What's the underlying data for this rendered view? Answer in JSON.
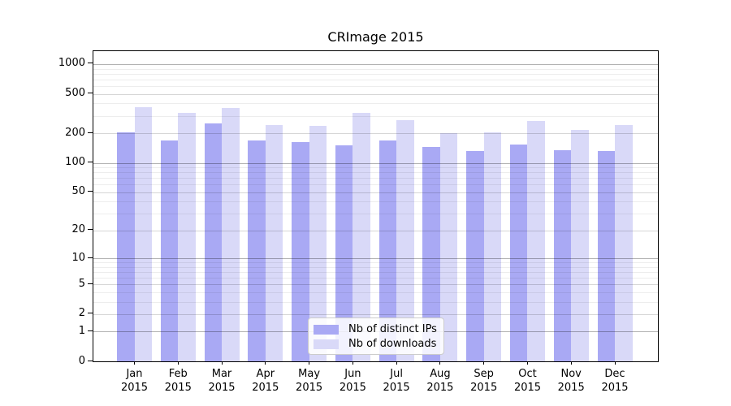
{
  "figure": {
    "title": "CRImage 2015",
    "background_color": "#ffffff",
    "axis_color": "#000000"
  },
  "chart_data": {
    "type": "bar",
    "title": "CRImage 2015",
    "categories": [
      "Jan 2015",
      "Feb 2015",
      "Mar 2015",
      "Apr 2015",
      "May 2015",
      "Jun 2015",
      "Jul 2015",
      "Aug 2015",
      "Sep 2015",
      "Oct 2015",
      "Nov 2015",
      "Dec 2015"
    ],
    "series": [
      {
        "name": "Nb of distinct IPs",
        "color": "#a9a9f4",
        "values": [
          203,
          170,
          251,
          170,
          161,
          150,
          170,
          144,
          133,
          154,
          135,
          133
        ]
      },
      {
        "name": "Nb of downloads",
        "color": "#d9d9f8",
        "values": [
          368,
          321,
          357,
          244,
          237,
          321,
          272,
          202,
          206,
          267,
          218,
          244
        ]
      }
    ],
    "xlabel": "",
    "ylabel": "",
    "yscale": "log10(1+y)",
    "yticks": [
      0,
      1,
      2,
      5,
      10,
      20,
      50,
      100,
      200,
      500,
      1000
    ],
    "ylim": [
      0,
      1340
    ],
    "grid": "horizontal",
    "legend_position": "inside-bottom-center"
  }
}
